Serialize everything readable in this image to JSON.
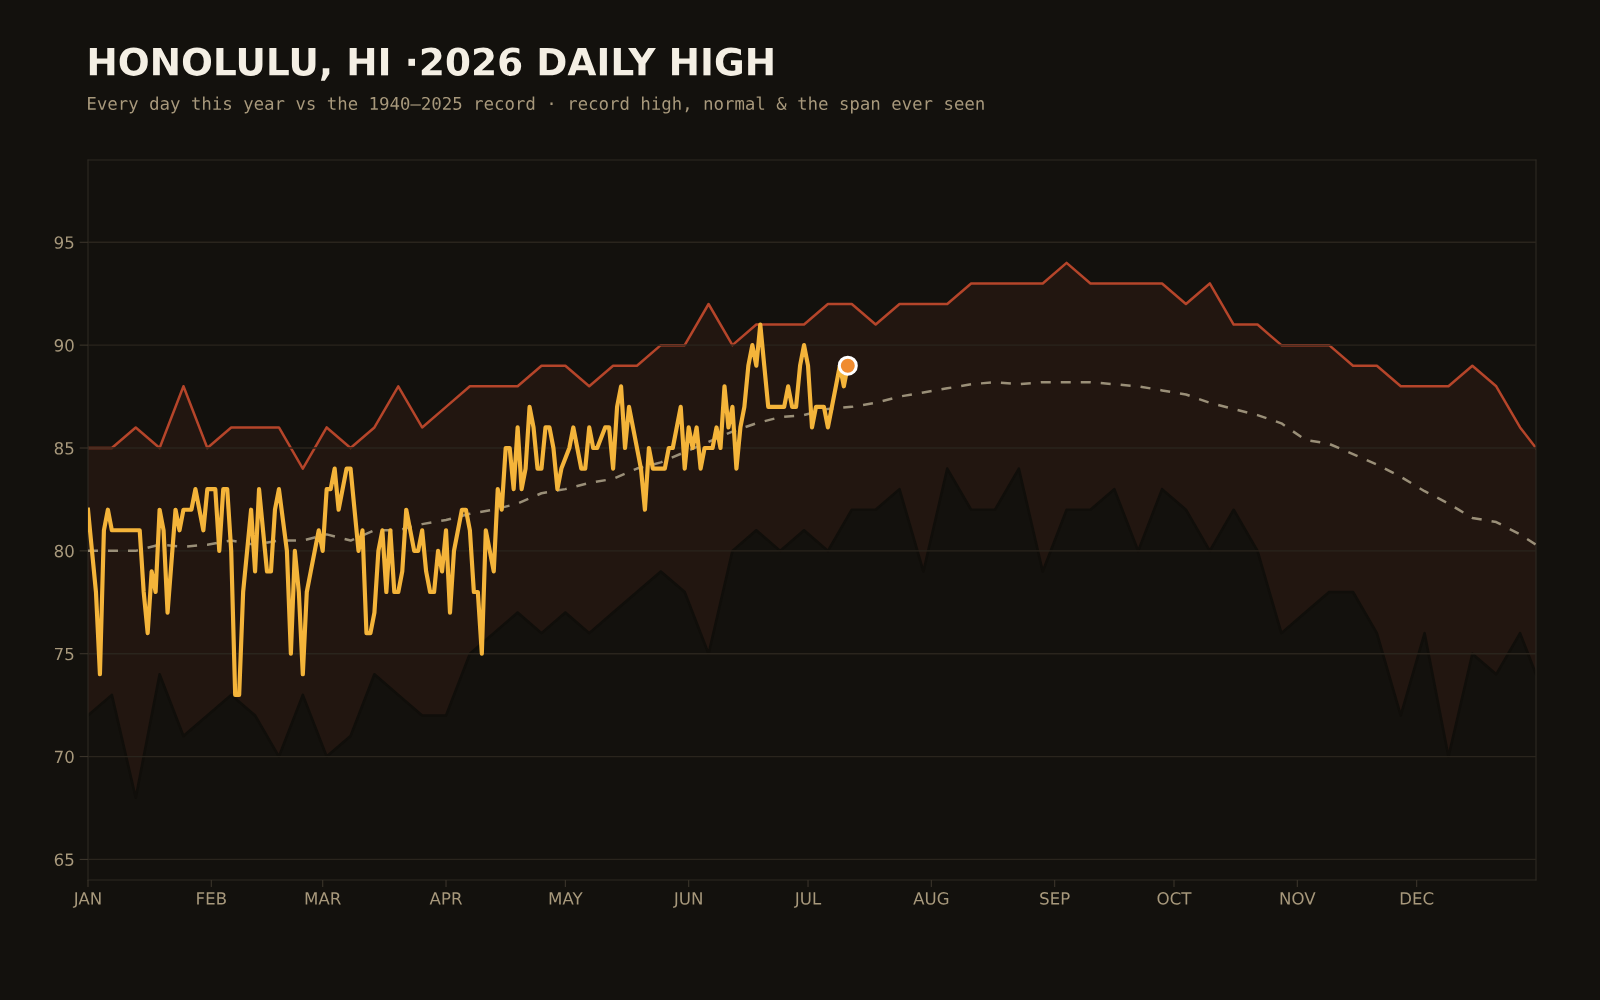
{
  "chart_data": {
    "type": "line",
    "title": "HONOLULU, HI ·2026 DAILY HIGH",
    "subtitle": "Every day this year vs the 1940–2025 record · record high, normal & the span ever seen",
    "x": [
      "2026-01-01",
      "2026-01-07",
      "2026-01-13",
      "2026-01-19",
      "2026-01-25",
      "2026-01-31",
      "2026-02-06",
      "2026-02-12",
      "2026-02-18",
      "2026-02-24",
      "2026-03-02",
      "2026-03-08",
      "2026-03-14",
      "2026-03-20",
      "2026-03-26",
      "2026-04-01",
      "2026-04-07",
      "2026-04-13",
      "2026-04-19",
      "2026-04-25",
      "2026-05-01",
      "2026-05-07",
      "2026-05-13",
      "2026-05-19",
      "2026-05-25",
      "2026-05-31",
      "2026-06-06",
      "2026-06-12",
      "2026-06-18",
      "2026-06-24",
      "2026-06-30",
      "2026-07-06",
      "2026-07-12",
      "2026-07-18",
      "2026-07-24",
      "2026-07-30",
      "2026-08-05",
      "2026-08-11",
      "2026-08-17",
      "2026-08-23",
      "2026-08-29",
      "2026-09-04",
      "2026-09-10",
      "2026-09-16",
      "2026-09-22",
      "2026-09-28",
      "2026-10-04",
      "2026-10-10",
      "2026-10-16",
      "2026-10-22",
      "2026-10-28",
      "2026-11-03",
      "2026-11-09",
      "2026-11-15",
      "2026-11-21",
      "2026-11-27",
      "2026-12-03",
      "2026-12-09",
      "2026-12-15",
      "2026-12-21",
      "2026-12-27",
      "2026-12-31"
    ],
    "series": [
      {
        "type": "area",
        "color": "#b5452a",
        "values": [
          85,
          85,
          86,
          85,
          88,
          85,
          86,
          86,
          86,
          84,
          86,
          85,
          86,
          88,
          86,
          87,
          88,
          88,
          88,
          89,
          89,
          88,
          89,
          89,
          90,
          90,
          92,
          90,
          91,
          91,
          91,
          92,
          92,
          91,
          92,
          92,
          92,
          93,
          93,
          93,
          93,
          94,
          93,
          93,
          93,
          93,
          92,
          93,
          91,
          91,
          90,
          90,
          90,
          89,
          89,
          88,
          88,
          88,
          89,
          88,
          86,
          85
        ]
      },
      {
        "type": "area",
        "color": "#100e0a",
        "values": [
          72,
          73,
          68,
          74,
          71,
          72,
          73,
          72,
          70,
          73,
          70,
          71,
          74,
          73,
          72,
          72,
          75,
          76,
          77,
          76,
          77,
          76,
          77,
          78,
          79,
          78,
          75,
          80,
          81,
          80,
          81,
          80,
          82,
          82,
          83,
          79,
          84,
          82,
          82,
          84,
          79,
          82,
          82,
          83,
          80,
          83,
          82,
          80,
          82,
          80,
          76,
          77,
          78,
          78,
          76,
          72,
          76,
          70,
          75,
          74,
          76,
          74
        ]
      },
      {
        "color": "#9a8f78",
        "line_style": "dashed",
        "values": [
          80,
          80,
          80,
          80.3,
          80.2,
          80.3,
          80.5,
          80.3,
          80.5,
          80.5,
          80.8,
          80.5,
          81,
          81,
          81.3,
          81.5,
          81.8,
          82,
          82.3,
          82.8,
          83,
          83.3,
          83.5,
          84,
          84.3,
          84.8,
          85.3,
          85.8,
          86.2,
          86.5,
          86.6,
          86.9,
          87,
          87.2,
          87.5,
          87.7,
          87.9,
          88.1,
          88.2,
          88.1,
          88.2,
          88.2,
          88.2,
          88.1,
          88,
          87.8,
          87.6,
          87.2,
          86.9,
          86.6,
          86.2,
          85.4,
          85.2,
          84.7,
          84.2,
          83.6,
          82.9,
          82.3,
          81.6,
          81.4,
          80.8,
          80.3
        ]
      },
      {
        "color": "#f4b43a",
        "x": [
          "2026-01-01",
          "2026-01-02",
          "2026-01-03",
          "2026-01-04",
          "2026-01-05",
          "2026-01-06",
          "2026-01-07",
          "2026-01-10",
          "2026-01-14",
          "2026-01-15",
          "2026-01-16",
          "2026-01-17",
          "2026-01-18",
          "2026-01-19",
          "2026-01-20",
          "2026-01-21",
          "2026-01-23",
          "2026-01-24",
          "2026-01-25",
          "2026-01-27",
          "2026-01-28",
          "2026-01-30",
          "2026-01-31",
          "2026-02-02",
          "2026-02-03",
          "2026-02-04",
          "2026-02-05",
          "2026-02-06",
          "2026-02-07",
          "2026-02-08",
          "2026-02-09",
          "2026-02-11",
          "2026-02-12",
          "2026-02-13",
          "2026-02-15",
          "2026-02-16",
          "2026-02-17",
          "2026-02-18",
          "2026-02-20",
          "2026-02-21",
          "2026-02-22",
          "2026-02-23",
          "2026-02-24",
          "2026-02-25",
          "2026-02-26",
          "2026-02-28",
          "2026-03-01",
          "2026-03-02",
          "2026-03-03",
          "2026-03-04",
          "2026-03-05",
          "2026-03-07",
          "2026-03-08",
          "2026-03-09",
          "2026-03-10",
          "2026-03-11",
          "2026-03-12",
          "2026-03-13",
          "2026-03-14",
          "2026-03-15",
          "2026-03-16",
          "2026-03-17",
          "2026-03-18",
          "2026-03-19",
          "2026-03-20",
          "2026-03-21",
          "2026-03-22",
          "2026-03-24",
          "2026-03-25",
          "2026-03-26",
          "2026-03-27",
          "2026-03-28",
          "2026-03-29",
          "2026-03-30",
          "2026-03-31",
          "2026-04-01",
          "2026-04-02",
          "2026-04-03",
          "2026-04-05",
          "2026-04-06",
          "2026-04-07",
          "2026-04-08",
          "2026-04-09",
          "2026-04-10",
          "2026-04-11",
          "2026-04-13",
          "2026-04-14",
          "2026-04-15",
          "2026-04-16",
          "2026-04-17",
          "2026-04-18",
          "2026-04-19",
          "2026-04-20",
          "2026-04-21",
          "2026-04-22",
          "2026-04-23",
          "2026-04-24",
          "2026-04-25",
          "2026-04-26",
          "2026-04-27",
          "2026-04-28",
          "2026-04-29",
          "2026-04-30",
          "2026-05-02",
          "2026-05-03",
          "2026-05-04",
          "2026-05-05",
          "2026-05-06",
          "2026-05-07",
          "2026-05-08",
          "2026-05-09",
          "2026-05-11",
          "2026-05-12",
          "2026-05-13",
          "2026-05-14",
          "2026-05-15",
          "2026-05-16",
          "2026-05-17",
          "2026-05-18",
          "2026-05-20",
          "2026-05-21",
          "2026-05-22",
          "2026-05-23",
          "2026-05-26",
          "2026-05-27",
          "2026-05-28",
          "2026-05-29",
          "2026-05-30",
          "2026-05-31",
          "2026-06-01",
          "2026-06-02",
          "2026-06-03",
          "2026-06-04",
          "2026-06-05",
          "2026-06-07",
          "2026-06-08",
          "2026-06-09",
          "2026-06-10",
          "2026-06-11",
          "2026-06-12",
          "2026-06-13",
          "2026-06-14",
          "2026-06-15",
          "2026-06-16",
          "2026-06-17",
          "2026-06-18",
          "2026-06-19",
          "2026-06-20",
          "2026-06-21",
          "2026-06-25",
          "2026-06-26",
          "2026-06-27",
          "2026-06-28",
          "2026-06-29",
          "2026-06-30",
          "2026-07-01",
          "2026-07-02",
          "2026-07-03",
          "2026-07-05",
          "2026-07-06",
          "2026-07-07",
          "2026-07-08",
          "2026-07-09",
          "2026-07-10",
          "2026-07-11"
        ],
        "values": [
          82,
          80,
          78,
          74,
          81,
          82,
          81,
          81,
          81,
          78,
          76,
          79,
          78,
          82,
          81,
          77,
          82,
          81,
          82,
          82,
          83,
          81,
          83,
          83,
          80,
          83,
          83,
          80,
          73,
          73,
          78,
          82,
          79,
          83,
          79,
          79,
          82,
          83,
          80,
          75,
          80,
          78,
          74,
          78,
          79,
          81,
          80,
          83,
          83,
          84,
          82,
          84,
          84,
          82,
          80,
          81,
          76,
          76,
          77,
          80,
          81,
          78,
          81,
          78,
          78,
          79,
          82,
          80,
          80,
          81,
          79,
          78,
          78,
          80,
          79,
          81,
          77,
          80,
          82,
          82,
          81,
          78,
          78,
          75,
          81,
          79,
          83,
          82,
          85,
          85,
          83,
          86,
          83,
          84,
          87,
          86,
          84,
          84,
          86,
          86,
          85,
          83,
          84,
          85,
          86,
          85,
          84,
          84,
          86,
          85,
          85,
          86,
          86,
          84,
          87,
          88,
          85,
          87,
          86,
          84,
          82,
          85,
          84,
          84,
          85,
          85,
          86,
          87,
          84,
          86,
          85,
          86,
          84,
          85,
          85,
          86,
          85,
          88,
          86,
          87,
          84,
          86,
          87,
          89,
          90,
          89,
          91,
          89,
          87,
          87,
          88,
          87,
          87,
          89,
          90,
          89,
          86,
          87,
          87,
          86,
          87,
          88,
          89,
          88,
          89
        ]
      },
      {
        "type": "scatter",
        "color": "#f08c30",
        "marker": "circle",
        "x": [
          "2026-07-11"
        ],
        "values": [
          89
        ]
      }
    ],
    "xlim": [
      "2026-01-01",
      "2026-12-31"
    ],
    "xticks": [
      {
        "value": "2026-01-01",
        "label": "JAN"
      },
      {
        "value": "2026-02-01",
        "label": "FEB"
      },
      {
        "value": "2026-03-01",
        "label": "MAR"
      },
      {
        "value": "2026-04-01",
        "label": "APR"
      },
      {
        "value": "2026-05-01",
        "label": "MAY"
      },
      {
        "value": "2026-06-01",
        "label": "JUN"
      },
      {
        "value": "2026-07-01",
        "label": "JUL"
      },
      {
        "value": "2026-08-01",
        "label": "AUG"
      },
      {
        "value": "2026-09-01",
        "label": "SEP"
      },
      {
        "value": "2026-10-01",
        "label": "OCT"
      },
      {
        "value": "2026-11-01",
        "label": "NOV"
      },
      {
        "value": "2026-12-01",
        "label": "DEC"
      }
    ],
    "ylim": [
      64,
      99
    ],
    "yticks": [
      65,
      70,
      75,
      80,
      85,
      90,
      95
    ],
    "grid": "y"
  }
}
